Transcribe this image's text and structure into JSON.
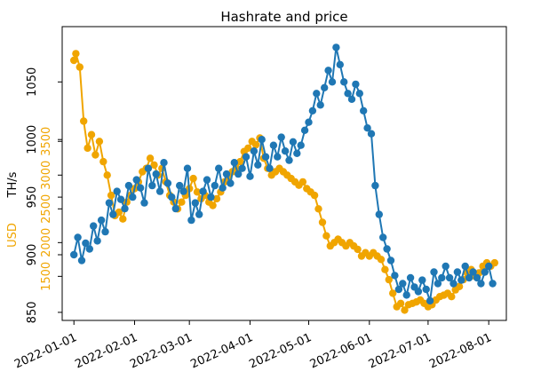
{
  "chart_data": {
    "type": "line",
    "title": "Hashrate and price",
    "ylabel_hashrate": "TH/s",
    "ylabel_price": "USD",
    "hashrate_ylim": [
      843,
      1098
    ],
    "price_ylim": [
      847,
      5200
    ],
    "x_start": "2021-12-26",
    "x_end": "2022-08-10",
    "x_ticks": [
      "2022-01-01",
      "2022-02-01",
      "2022-03-01",
      "2022-04-01",
      "2022-05-01",
      "2022-06-01",
      "2022-07-01",
      "2022-08-01"
    ],
    "hashrate_ticks": [
      850,
      900,
      950,
      1000,
      1050
    ],
    "price_ticks": [
      1500,
      2000,
      2500,
      3000,
      3500
    ],
    "price_tick_labels": [
      "1500",
      "2000",
      "2500",
      "3000",
      "3500"
    ],
    "colors": {
      "hashrate": "#1f77b4",
      "price": "#f0a500"
    },
    "series": [
      {
        "key": "hashrate",
        "color": "#1f77b4",
        "points": [
          [
            "2022-01-01",
            900
          ],
          [
            "2022-01-03",
            915
          ],
          [
            "2022-01-05",
            895
          ],
          [
            "2022-01-07",
            910
          ],
          [
            "2022-01-09",
            905
          ],
          [
            "2022-01-11",
            925
          ],
          [
            "2022-01-13",
            912
          ],
          [
            "2022-01-15",
            930
          ],
          [
            "2022-01-17",
            920
          ],
          [
            "2022-01-19",
            945
          ],
          [
            "2022-01-21",
            935
          ],
          [
            "2022-01-23",
            955
          ],
          [
            "2022-01-25",
            948
          ],
          [
            "2022-01-27",
            940
          ],
          [
            "2022-01-29",
            960
          ],
          [
            "2022-01-31",
            950
          ],
          [
            "2022-02-02",
            965
          ],
          [
            "2022-02-04",
            958
          ],
          [
            "2022-02-06",
            945
          ],
          [
            "2022-02-08",
            975
          ],
          [
            "2022-02-10",
            960
          ],
          [
            "2022-02-12",
            970
          ],
          [
            "2022-02-14",
            955
          ],
          [
            "2022-02-16",
            980
          ],
          [
            "2022-02-18",
            962
          ],
          [
            "2022-02-20",
            950
          ],
          [
            "2022-02-22",
            940
          ],
          [
            "2022-02-24",
            960
          ],
          [
            "2022-02-26",
            955
          ],
          [
            "2022-02-28",
            975
          ],
          [
            "2022-03-02",
            930
          ],
          [
            "2022-03-04",
            945
          ],
          [
            "2022-03-06",
            935
          ],
          [
            "2022-03-08",
            955
          ],
          [
            "2022-03-10",
            965
          ],
          [
            "2022-03-12",
            950
          ],
          [
            "2022-03-14",
            960
          ],
          [
            "2022-03-16",
            975
          ],
          [
            "2022-03-18",
            958
          ],
          [
            "2022-03-20",
            970
          ],
          [
            "2022-03-22",
            962
          ],
          [
            "2022-03-24",
            980
          ],
          [
            "2022-03-26",
            970
          ],
          [
            "2022-03-28",
            975
          ],
          [
            "2022-03-30",
            985
          ],
          [
            "2022-04-01",
            968
          ],
          [
            "2022-04-03",
            990
          ],
          [
            "2022-04-05",
            978
          ],
          [
            "2022-04-07",
            1000
          ],
          [
            "2022-04-09",
            985
          ],
          [
            "2022-04-11",
            975
          ],
          [
            "2022-04-13",
            995
          ],
          [
            "2022-04-15",
            985
          ],
          [
            "2022-04-17",
            1002
          ],
          [
            "2022-04-19",
            990
          ],
          [
            "2022-04-21",
            982
          ],
          [
            "2022-04-23",
            998
          ],
          [
            "2022-04-25",
            988
          ],
          [
            "2022-04-27",
            995
          ],
          [
            "2022-04-29",
            1008
          ],
          [
            "2022-05-01",
            1015
          ],
          [
            "2022-05-03",
            1025
          ],
          [
            "2022-05-05",
            1040
          ],
          [
            "2022-05-07",
            1030
          ],
          [
            "2022-05-09",
            1045
          ],
          [
            "2022-05-11",
            1060
          ],
          [
            "2022-05-13",
            1050
          ],
          [
            "2022-05-15",
            1080
          ],
          [
            "2022-05-17",
            1065
          ],
          [
            "2022-05-19",
            1050
          ],
          [
            "2022-05-21",
            1040
          ],
          [
            "2022-05-23",
            1035
          ],
          [
            "2022-05-25",
            1048
          ],
          [
            "2022-05-27",
            1040
          ],
          [
            "2022-05-29",
            1025
          ],
          [
            "2022-05-31",
            1010
          ],
          [
            "2022-06-02",
            1005
          ],
          [
            "2022-06-04",
            960
          ],
          [
            "2022-06-06",
            935
          ],
          [
            "2022-06-08",
            915
          ],
          [
            "2022-06-10",
            905
          ],
          [
            "2022-06-12",
            895
          ],
          [
            "2022-06-14",
            882
          ],
          [
            "2022-06-16",
            870
          ],
          [
            "2022-06-18",
            875
          ],
          [
            "2022-06-20",
            865
          ],
          [
            "2022-06-22",
            880
          ],
          [
            "2022-06-24",
            872
          ],
          [
            "2022-06-26",
            868
          ],
          [
            "2022-06-28",
            878
          ],
          [
            "2022-06-30",
            870
          ],
          [
            "2022-07-02",
            860
          ],
          [
            "2022-07-04",
            885
          ],
          [
            "2022-07-06",
            875
          ],
          [
            "2022-07-08",
            880
          ],
          [
            "2022-07-10",
            890
          ],
          [
            "2022-07-12",
            880
          ],
          [
            "2022-07-14",
            875
          ],
          [
            "2022-07-16",
            885
          ],
          [
            "2022-07-18",
            878
          ],
          [
            "2022-07-20",
            890
          ],
          [
            "2022-07-22",
            880
          ],
          [
            "2022-07-24",
            885
          ],
          [
            "2022-07-26",
            880
          ],
          [
            "2022-07-28",
            875
          ],
          [
            "2022-07-30",
            885
          ],
          [
            "2022-08-01",
            890
          ],
          [
            "2022-08-03",
            875
          ]
        ]
      },
      {
        "key": "price",
        "color": "#f0a500",
        "points": [
          [
            "2022-01-01",
            4700
          ],
          [
            "2022-01-02",
            4800
          ],
          [
            "2022-01-04",
            4600
          ],
          [
            "2022-01-06",
            3800
          ],
          [
            "2022-01-08",
            3400
          ],
          [
            "2022-01-10",
            3600
          ],
          [
            "2022-01-12",
            3300
          ],
          [
            "2022-01-14",
            3500
          ],
          [
            "2022-01-16",
            3200
          ],
          [
            "2022-01-18",
            3000
          ],
          [
            "2022-01-20",
            2700
          ],
          [
            "2022-01-22",
            2400
          ],
          [
            "2022-01-24",
            2450
          ],
          [
            "2022-01-26",
            2350
          ],
          [
            "2022-01-28",
            2600
          ],
          [
            "2022-01-30",
            2700
          ],
          [
            "2022-02-01",
            2800
          ],
          [
            "2022-02-03",
            2900
          ],
          [
            "2022-02-05",
            3050
          ],
          [
            "2022-02-07",
            3100
          ],
          [
            "2022-02-09",
            3250
          ],
          [
            "2022-02-11",
            3150
          ],
          [
            "2022-02-13",
            3000
          ],
          [
            "2022-02-15",
            3100
          ],
          [
            "2022-02-17",
            2900
          ],
          [
            "2022-02-19",
            2700
          ],
          [
            "2022-02-21",
            2600
          ],
          [
            "2022-02-23",
            2500
          ],
          [
            "2022-02-25",
            2600
          ],
          [
            "2022-02-27",
            2700
          ],
          [
            "2022-03-01",
            2800
          ],
          [
            "2022-03-03",
            2950
          ],
          [
            "2022-03-05",
            2750
          ],
          [
            "2022-03-07",
            2650
          ],
          [
            "2022-03-09",
            2700
          ],
          [
            "2022-03-11",
            2600
          ],
          [
            "2022-03-13",
            2550
          ],
          [
            "2022-03-15",
            2650
          ],
          [
            "2022-03-17",
            2750
          ],
          [
            "2022-03-19",
            2900
          ],
          [
            "2022-03-21",
            2950
          ],
          [
            "2022-03-23",
            3050
          ],
          [
            "2022-03-25",
            3100
          ],
          [
            "2022-03-27",
            3200
          ],
          [
            "2022-03-29",
            3350
          ],
          [
            "2022-03-31",
            3400
          ],
          [
            "2022-04-02",
            3500
          ],
          [
            "2022-04-04",
            3450
          ],
          [
            "2022-04-06",
            3550
          ],
          [
            "2022-04-08",
            3250
          ],
          [
            "2022-04-10",
            3100
          ],
          [
            "2022-04-12",
            3000
          ],
          [
            "2022-04-14",
            3050
          ],
          [
            "2022-04-16",
            3100
          ],
          [
            "2022-04-18",
            3050
          ],
          [
            "2022-04-20",
            3000
          ],
          [
            "2022-04-22",
            2950
          ],
          [
            "2022-04-24",
            2900
          ],
          [
            "2022-04-26",
            2850
          ],
          [
            "2022-04-28",
            2900
          ],
          [
            "2022-04-30",
            2800
          ],
          [
            "2022-05-02",
            2750
          ],
          [
            "2022-05-04",
            2700
          ],
          [
            "2022-05-06",
            2500
          ],
          [
            "2022-05-08",
            2300
          ],
          [
            "2022-05-10",
            2100
          ],
          [
            "2022-05-12",
            1950
          ],
          [
            "2022-05-14",
            2000
          ],
          [
            "2022-05-16",
            2050
          ],
          [
            "2022-05-18",
            2000
          ],
          [
            "2022-05-20",
            1950
          ],
          [
            "2022-05-22",
            2000
          ],
          [
            "2022-05-24",
            1950
          ],
          [
            "2022-05-26",
            1900
          ],
          [
            "2022-05-28",
            1800
          ],
          [
            "2022-05-30",
            1850
          ],
          [
            "2022-06-01",
            1800
          ],
          [
            "2022-06-03",
            1850
          ],
          [
            "2022-06-05",
            1800
          ],
          [
            "2022-06-07",
            1750
          ],
          [
            "2022-06-09",
            1600
          ],
          [
            "2022-06-11",
            1450
          ],
          [
            "2022-06-13",
            1250
          ],
          [
            "2022-06-15",
            1050
          ],
          [
            "2022-06-17",
            1100
          ],
          [
            "2022-06-19",
            1000
          ],
          [
            "2022-06-21",
            1080
          ],
          [
            "2022-06-23",
            1100
          ],
          [
            "2022-06-25",
            1120
          ],
          [
            "2022-06-27",
            1150
          ],
          [
            "2022-06-29",
            1100
          ],
          [
            "2022-07-01",
            1050
          ],
          [
            "2022-07-03",
            1080
          ],
          [
            "2022-07-05",
            1150
          ],
          [
            "2022-07-07",
            1200
          ],
          [
            "2022-07-09",
            1220
          ],
          [
            "2022-07-11",
            1250
          ],
          [
            "2022-07-13",
            1200
          ],
          [
            "2022-07-15",
            1300
          ],
          [
            "2022-07-17",
            1350
          ],
          [
            "2022-07-19",
            1450
          ],
          [
            "2022-07-21",
            1550
          ],
          [
            "2022-07-23",
            1600
          ],
          [
            "2022-07-25",
            1500
          ],
          [
            "2022-07-27",
            1550
          ],
          [
            "2022-07-29",
            1650
          ],
          [
            "2022-07-31",
            1700
          ],
          [
            "2022-08-02",
            1650
          ],
          [
            "2022-08-04",
            1700
          ]
        ]
      }
    ]
  }
}
